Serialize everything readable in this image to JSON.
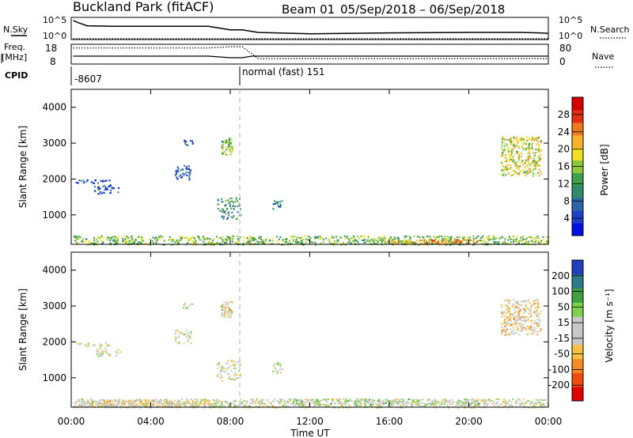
{
  "header": {
    "title": "Buckland Park (fitACF)",
    "beam": "Beam 01",
    "date_range": "05/Sep/2018 – 06/Sep/2018"
  },
  "summary_panels": {
    "nsky_label": "N.Sky",
    "nsearch_label": "N.Search",
    "freq_label_line1": "Freq.",
    "freq_label_line2": "[MHz]",
    "nave_label": "Nave",
    "cpid_label": "CPID",
    "log_hi_tick": "10^5",
    "log_lo_tick": "10^0",
    "freq_ticks": [
      "18",
      "8"
    ],
    "nave_ticks": [
      "80",
      "0"
    ],
    "cpid_first": "-8607",
    "cpid_second": "normal (fast) 151",
    "nsky_trace": [
      [
        0.1,
        4.3
      ],
      [
        0.3,
        3.9
      ],
      [
        0.8,
        3.1
      ],
      [
        2.0,
        3.0
      ],
      [
        4.0,
        3.0
      ],
      [
        6.0,
        3.0
      ],
      [
        6.9,
        3.0
      ],
      [
        8.0,
        2.2
      ],
      [
        8.6,
        2.2
      ],
      [
        9.4,
        1.6
      ],
      [
        12.0,
        1.3
      ],
      [
        16.0,
        1.5
      ],
      [
        20.0,
        1.6
      ],
      [
        22.6,
        1.6
      ],
      [
        23.6,
        1.5
      ],
      [
        24.0,
        1.4
      ]
    ],
    "nsearch_trace": [
      [
        0.1,
        0.2
      ],
      [
        6.9,
        0.2
      ],
      [
        8.0,
        0.2
      ],
      [
        24.0,
        0.2
      ]
    ],
    "freq_trace": [
      [
        0.1,
        12.0
      ],
      [
        6.9,
        12.0
      ],
      [
        8.0,
        11.2
      ],
      [
        8.6,
        11.2
      ],
      [
        9.1,
        12.0
      ],
      [
        24.0,
        12.0
      ]
    ],
    "nave_trace": [
      [
        0.1,
        65
      ],
      [
        6.9,
        65
      ],
      [
        8.0,
        70
      ],
      [
        8.6,
        70
      ],
      [
        9.4,
        22
      ],
      [
        24.0,
        22
      ]
    ]
  },
  "colorbars": {
    "power_label": "Power [dB]",
    "velocity_label": "Velocity [m s⁻¹]",
    "power_ticks": [
      "28",
      "24",
      "20",
      "16",
      "12",
      "8",
      "4"
    ],
    "velocity_ticks": [
      "200",
      "100",
      "50",
      "15",
      "-15",
      "-50",
      "-100",
      "-200"
    ],
    "power_colors": [
      "#0010e0",
      "#1f3fc8",
      "#2e64a8",
      "#2f8a6e",
      "#3ea04a",
      "#8cc83a",
      "#f0e020",
      "#f7b22a",
      "#f07a20",
      "#e03010",
      "#d40000"
    ],
    "velocity_colors": [
      "#e00000",
      "#f04a10",
      "#f78a20",
      "#f7c040",
      "#c8c8c8",
      "#c8c8c8",
      "#7fd04a",
      "#40a040",
      "#2e7a8a",
      "#2040c0"
    ]
  },
  "axes": {
    "ylabel": "Slant Range [km]",
    "xlabel": "Time UT",
    "y_ticks": [
      "1000",
      "2000",
      "3000",
      "4000"
    ],
    "x_ticks": [
      "00:00",
      "04:00",
      "08:00",
      "12:00",
      "16:00",
      "20:00",
      "00:00"
    ]
  },
  "chart_data": [
    {
      "type": "heatmap",
      "title": "Power [dB]",
      "ylabel": "Slant Range [km]",
      "xlim": [
        0,
        24
      ],
      "ylim": [
        180,
        4500
      ],
      "zlim": [
        0,
        30
      ],
      "scatter_regions": [
        {
          "t0": 0.1,
          "t1": 24.0,
          "r0": 180,
          "r1": 430,
          "z_avg": 14,
          "density": 0.55
        },
        {
          "t0": 16.0,
          "t1": 20.5,
          "r0": 200,
          "r1": 330,
          "z_avg": 22,
          "density": 0.5
        },
        {
          "t0": 0.2,
          "t1": 1.9,
          "r0": 1900,
          "r1": 2000,
          "z_avg": 4,
          "density": 0.45
        },
        {
          "t0": 1.1,
          "t1": 2.5,
          "r0": 1600,
          "r1": 1850,
          "z_avg": 5,
          "density": 0.35
        },
        {
          "t0": 5.2,
          "t1": 6.0,
          "r0": 2000,
          "r1": 2400,
          "z_avg": 5,
          "density": 0.45
        },
        {
          "t0": 5.6,
          "t1": 6.1,
          "r0": 2950,
          "r1": 3100,
          "z_avg": 4,
          "density": 0.5
        },
        {
          "t0": 7.5,
          "t1": 8.1,
          "r0": 2700,
          "r1": 3150,
          "z_avg": 14,
          "density": 0.75
        },
        {
          "t0": 7.3,
          "t1": 8.5,
          "r0": 900,
          "r1": 1500,
          "z_avg": 10,
          "density": 0.35
        },
        {
          "t0": 10.1,
          "t1": 10.6,
          "r0": 1150,
          "r1": 1450,
          "z_avg": 10,
          "density": 0.45
        },
        {
          "t0": 21.6,
          "t1": 23.6,
          "r0": 2100,
          "r1": 3200,
          "z_avg": 17,
          "density": 0.5
        }
      ]
    },
    {
      "type": "heatmap",
      "title": "Velocity [m s⁻¹]",
      "ylabel": "Slant Range [km]",
      "xlabel": "Time UT",
      "xlim": [
        0,
        24
      ],
      "ylim": [
        180,
        4500
      ],
      "zlim": [
        -250,
        250
      ],
      "scatter_regions": [
        {
          "t0": 0.1,
          "t1": 24.0,
          "r0": 180,
          "r1": 430,
          "z_avg": 0,
          "density": 0.5
        },
        {
          "t0": 0.1,
          "t1": 7.0,
          "r0": 200,
          "r1": 400,
          "z_avg": -40,
          "density": 0.45
        },
        {
          "t0": 11.0,
          "t1": 21.0,
          "r0": 250,
          "r1": 420,
          "z_avg": 30,
          "density": 0.5
        },
        {
          "t0": 0.2,
          "t1": 1.9,
          "r0": 1900,
          "r1": 2000,
          "z_avg": 0,
          "density": 0.4
        },
        {
          "t0": 1.1,
          "t1": 2.5,
          "r0": 1600,
          "r1": 1850,
          "z_avg": 0,
          "density": 0.3
        },
        {
          "t0": 5.2,
          "t1": 6.0,
          "r0": 1950,
          "r1": 2350,
          "z_avg": -10,
          "density": 0.4
        },
        {
          "t0": 5.6,
          "t1": 6.1,
          "r0": 2950,
          "r1": 3100,
          "z_avg": 0,
          "density": 0.5
        },
        {
          "t0": 7.5,
          "t1": 8.1,
          "r0": 2700,
          "r1": 3150,
          "z_avg": -20,
          "density": 0.7
        },
        {
          "t0": 7.3,
          "t1": 8.5,
          "r0": 900,
          "r1": 1500,
          "z_avg": 0,
          "density": 0.3
        },
        {
          "t0": 10.1,
          "t1": 10.6,
          "r0": 1150,
          "r1": 1450,
          "z_avg": 0,
          "density": 0.4
        },
        {
          "t0": 21.6,
          "t1": 23.6,
          "r0": 2200,
          "r1": 3200,
          "z_avg": -40,
          "density": 0.5
        }
      ]
    }
  ]
}
